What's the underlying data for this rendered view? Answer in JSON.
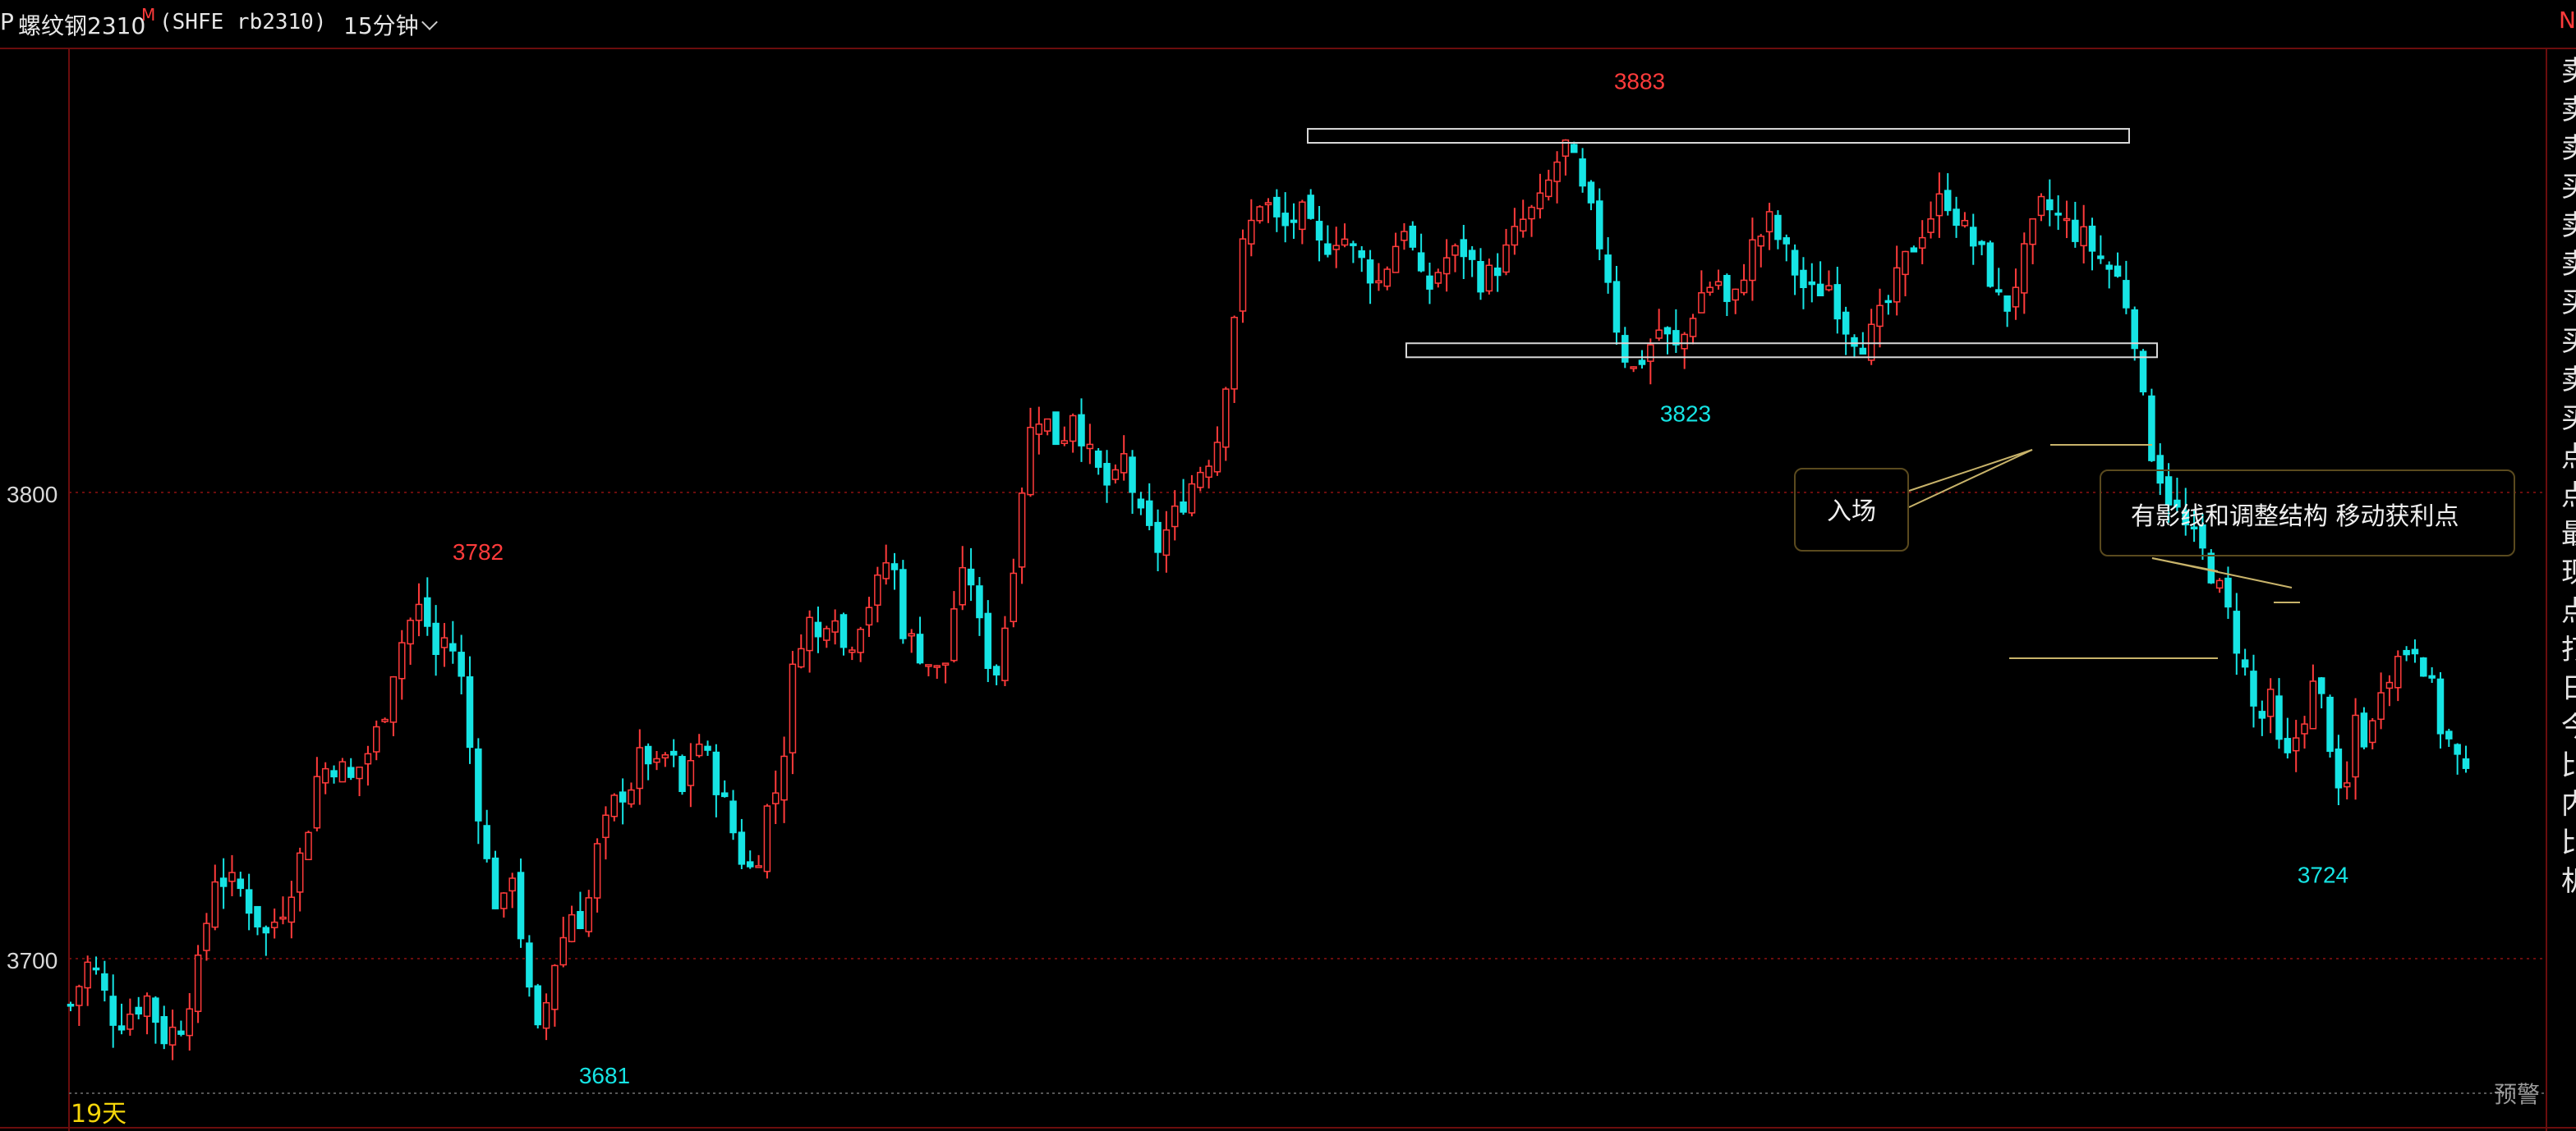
{
  "header": {
    "prefix": "P",
    "symbol_name": "螺纹钢2310",
    "symbol_flag": "M",
    "symbol_code": "(SHFE rb2310)",
    "period": "15分钟",
    "right_flag": "N"
  },
  "footer": {
    "days_label": "19天",
    "alert_label": "预警"
  },
  "annotations": {
    "entry": "入场",
    "structure": "有影线和调整结构  移动获利点"
  },
  "right_panel_chars": [
    "卖",
    "卖",
    "卖",
    "买",
    "卖",
    "卖",
    "买",
    "买",
    "卖",
    "买",
    "点",
    "点",
    "最",
    "现",
    "点",
    "打",
    "日",
    "今",
    "比",
    "内",
    "比",
    "机"
  ],
  "colors": {
    "background": "#000000",
    "up": "#ff3b3b",
    "down": "#16e4e4",
    "grid": "#6b0d0d",
    "label_high": "#ff3b3b",
    "label_low": "#16e4e4",
    "days": "#f5d60a",
    "annotation_line": "#c8b36a"
  },
  "chart_data": {
    "type": "candlestick",
    "instrument": "螺纹钢2310 (SHFE rb2310)",
    "interval": "15分钟",
    "y_tick_labels": [
      3700,
      3800
    ],
    "ylim": [
      3667,
      3892
    ],
    "grid": "dotted horizontal lines at 3700 and 3800",
    "marked_extremes": [
      {
        "label": "3782",
        "value": 3782,
        "kind": "high"
      },
      {
        "label": "3681",
        "value": 3681,
        "kind": "low"
      },
      {
        "label": "3883",
        "value": 3883,
        "kind": "high"
      },
      {
        "label": "3823",
        "value": 3823,
        "kind": "low"
      },
      {
        "label": "3724",
        "value": 3724,
        "kind": "low"
      }
    ],
    "ranges": [
      {
        "top": 3878,
        "bottom": 3875
      },
      {
        "top": 3832,
        "bottom": 3829
      }
    ],
    "candle_count": 283,
    "close_path": [
      [
        0,
        3690
      ],
      [
        6,
        3700
      ],
      [
        14,
        3686
      ],
      [
        24,
        3692
      ],
      [
        28,
        3683
      ],
      [
        34,
        3686
      ],
      [
        40,
        3700
      ],
      [
        44,
        3718
      ],
      [
        52,
        3715
      ],
      [
        60,
        3705
      ],
      [
        66,
        3712
      ],
      [
        72,
        3725
      ],
      [
        76,
        3740
      ],
      [
        82,
        3742
      ],
      [
        86,
        3738
      ],
      [
        92,
        3745
      ],
      [
        96,
        3752
      ],
      [
        100,
        3765
      ],
      [
        104,
        3772
      ],
      [
        108,
        3776
      ],
      [
        112,
        3765
      ],
      [
        116,
        3770
      ],
      [
        120,
        3760
      ],
      [
        124,
        3738
      ],
      [
        128,
        3720
      ],
      [
        132,
        3708
      ],
      [
        136,
        3720
      ],
      [
        140,
        3695
      ],
      [
        144,
        3682
      ],
      [
        148,
        3698
      ],
      [
        154,
        3710
      ],
      [
        158,
        3708
      ],
      [
        162,
        3724
      ],
      [
        168,
        3735
      ],
      [
        172,
        3737
      ],
      [
        176,
        3745
      ],
      [
        180,
        3740
      ],
      [
        184,
        3745
      ],
      [
        188,
        3735
      ],
      [
        192,
        3748
      ],
      [
        196,
        3742
      ],
      [
        200,
        3735
      ],
      [
        206,
        3722
      ],
      [
        210,
        3718
      ],
      [
        214,
        3732
      ],
      [
        218,
        3738
      ],
      [
        222,
        3762
      ],
      [
        226,
        3774
      ],
      [
        230,
        3768
      ],
      [
        234,
        3778
      ],
      [
        238,
        3765
      ],
      [
        242,
        3772
      ],
      [
        248,
        3780
      ],
      [
        252,
        3788
      ],
      [
        256,
        3770
      ],
      [
        262,
        3765
      ],
      [
        268,
        3760
      ],
      [
        272,
        3778
      ],
      [
        276,
        3784
      ],
      [
        280,
        3768
      ],
      [
        284,
        3760
      ],
      [
        288,
        3775
      ],
      [
        292,
        3800
      ],
      [
        296,
        3818
      ],
      [
        300,
        3815
      ],
      [
        304,
        3810
      ],
      [
        308,
        3818
      ],
      [
        314,
        3806
      ],
      [
        320,
        3800
      ],
      [
        324,
        3808
      ],
      [
        328,
        3795
      ],
      [
        334,
        3788
      ],
      [
        340,
        3796
      ],
      [
        346,
        3804
      ],
      [
        352,
        3810
      ],
      [
        356,
        3830
      ],
      [
        360,
        3852
      ],
      [
        366,
        3864
      ],
      [
        372,
        3856
      ],
      [
        378,
        3860
      ],
      [
        384,
        3852
      ],
      [
        390,
        3856
      ],
      [
        396,
        3850
      ],
      [
        402,
        3845
      ],
      [
        410,
        3858
      ],
      [
        416,
        3842
      ],
      [
        422,
        3850
      ],
      [
        428,
        3852
      ],
      [
        434,
        3845
      ],
      [
        440,
        3850
      ],
      [
        446,
        3858
      ],
      [
        452,
        3862
      ],
      [
        456,
        3870
      ],
      [
        460,
        3875
      ],
      [
        464,
        3865
      ],
      [
        468,
        3858
      ],
      [
        472,
        3848
      ],
      [
        476,
        3832
      ],
      [
        480,
        3826
      ],
      [
        484,
        3830
      ],
      [
        488,
        3835
      ],
      [
        494,
        3830
      ],
      [
        500,
        3842
      ],
      [
        506,
        3846
      ],
      [
        510,
        3838
      ],
      [
        516,
        3852
      ],
      [
        522,
        3858
      ],
      [
        528,
        3850
      ],
      [
        534,
        3842
      ],
      [
        540,
        3845
      ],
      [
        546,
        3835
      ],
      [
        552,
        3832
      ],
      [
        558,
        3840
      ],
      [
        564,
        3850
      ],
      [
        570,
        3858
      ],
      [
        576,
        3864
      ],
      [
        582,
        3856
      ],
      [
        588,
        3850
      ],
      [
        594,
        3838
      ],
      [
        600,
        3850
      ],
      [
        606,
        3862
      ],
      [
        612,
        3858
      ],
      [
        618,
        3855
      ],
      [
        624,
        3850
      ],
      [
        630,
        3845
      ],
      [
        634,
        3835
      ],
      [
        638,
        3812
      ],
      [
        644,
        3800
      ],
      [
        650,
        3792
      ],
      [
        656,
        3786
      ],
      [
        662,
        3776
      ],
      [
        668,
        3762
      ],
      [
        672,
        3750
      ],
      [
        676,
        3755
      ],
      [
        680,
        3740
      ],
      [
        686,
        3752
      ],
      [
        690,
        3760
      ],
      [
        694,
        3748
      ],
      [
        698,
        3728
      ],
      [
        702,
        3752
      ],
      [
        706,
        3745
      ],
      [
        710,
        3760
      ],
      [
        716,
        3765
      ],
      [
        720,
        3768
      ],
      [
        724,
        3762
      ],
      [
        728,
        3750
      ],
      [
        732,
        3745
      ],
      [
        736,
        3738
      ]
    ]
  }
}
